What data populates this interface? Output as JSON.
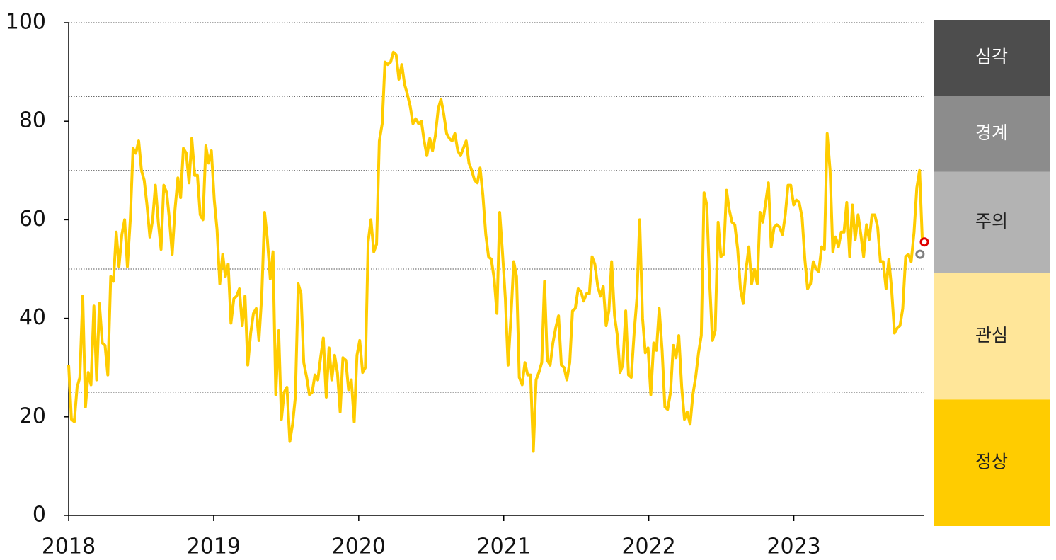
{
  "chart_data": {
    "type": "line",
    "xlim": [
      2018,
      2023.9
    ],
    "xticks": [
      2018,
      2019,
      2020,
      2021,
      2022,
      2023
    ],
    "ylim": [
      0,
      100
    ],
    "yticks": [
      0,
      20,
      40,
      60,
      80,
      100
    ],
    "x": [
      2018.0,
      2018.019,
      2018.039,
      2018.058,
      2018.077,
      2018.097,
      2018.116,
      2018.135,
      2018.154,
      2018.174,
      2018.193,
      2018.212,
      2018.232,
      2018.251,
      2018.27,
      2018.29,
      2018.309,
      2018.328,
      2018.347,
      2018.367,
      2018.386,
      2018.405,
      2018.425,
      2018.444,
      2018.463,
      2018.483,
      2018.502,
      2018.521,
      2018.54,
      2018.56,
      2018.579,
      2018.598,
      2018.618,
      2018.637,
      2018.656,
      2018.676,
      2018.695,
      2018.714,
      2018.733,
      2018.753,
      2018.772,
      2018.791,
      2018.811,
      2018.83,
      2018.849,
      2018.869,
      2018.888,
      2018.907,
      2018.926,
      2018.946,
      2018.965,
      2018.984,
      2019.004,
      2019.023,
      2019.042,
      2019.062,
      2019.081,
      2019.1,
      2019.119,
      2019.139,
      2019.158,
      2019.177,
      2019.197,
      2019.216,
      2019.235,
      2019.255,
      2019.274,
      2019.293,
      2019.312,
      2019.332,
      2019.351,
      2019.37,
      2019.39,
      2019.409,
      2019.428,
      2019.448,
      2019.467,
      2019.486,
      2019.505,
      2019.525,
      2019.544,
      2019.563,
      2019.583,
      2019.602,
      2019.621,
      2019.641,
      2019.66,
      2019.679,
      2019.698,
      2019.718,
      2019.737,
      2019.756,
      2019.776,
      2019.795,
      2019.814,
      2019.834,
      2019.853,
      2019.872,
      2019.891,
      2019.911,
      2019.93,
      2019.949,
      2019.969,
      2019.988,
      2020.007,
      2020.027,
      2020.046,
      2020.065,
      2020.084,
      2020.104,
      2020.123,
      2020.142,
      2020.162,
      2020.181,
      2020.2,
      2020.22,
      2020.239,
      2020.258,
      2020.277,
      2020.297,
      2020.316,
      2020.335,
      2020.355,
      2020.374,
      2020.393,
      2020.413,
      2020.432,
      2020.451,
      2020.47,
      2020.49,
      2020.509,
      2020.528,
      2020.548,
      2020.567,
      2020.586,
      2020.606,
      2020.625,
      2020.644,
      2020.663,
      2020.683,
      2020.702,
      2020.721,
      2020.741,
      2020.76,
      2020.779,
      2020.799,
      2020.818,
      2020.837,
      2020.856,
      2020.876,
      2020.895,
      2020.914,
      2020.934,
      2020.953,
      2020.972,
      2020.992,
      2021.011,
      2021.03,
      2021.049,
      2021.069,
      2021.088,
      2021.107,
      2021.127,
      2021.146,
      2021.165,
      2021.185,
      2021.204,
      2021.223,
      2021.242,
      2021.262,
      2021.281,
      2021.3,
      2021.32,
      2021.339,
      2021.358,
      2021.378,
      2021.397,
      2021.416,
      2021.435,
      2021.455,
      2021.474,
      2021.493,
      2021.513,
      2021.532,
      2021.551,
      2021.571,
      2021.59,
      2021.609,
      2021.628,
      2021.648,
      2021.667,
      2021.686,
      2021.706,
      2021.725,
      2021.744,
      2021.764,
      2021.783,
      2021.802,
      2021.821,
      2021.841,
      2021.86,
      2021.879,
      2021.899,
      2021.918,
      2021.937,
      2021.957,
      2021.976,
      2021.995,
      2022.014,
      2022.034,
      2022.053,
      2022.072,
      2022.092,
      2022.111,
      2022.13,
      2022.15,
      2022.169,
      2022.188,
      2022.207,
      2022.227,
      2022.246,
      2022.265,
      2022.285,
      2022.304,
      2022.323,
      2022.343,
      2022.362,
      2022.381,
      2022.4,
      2022.42,
      2022.439,
      2022.458,
      2022.478,
      2022.497,
      2022.516,
      2022.536,
      2022.555,
      2022.574,
      2022.593,
      2022.613,
      2022.632,
      2022.651,
      2022.671,
      2022.69,
      2022.709,
      2022.729,
      2022.748,
      2022.767,
      2022.786,
      2022.806,
      2022.825,
      2022.844,
      2022.864,
      2022.883,
      2022.902,
      2022.922,
      2022.941,
      2022.96,
      2022.979,
      2022.999,
      2023.018,
      2023.037,
      2023.057,
      2023.076,
      2023.095,
      2023.115,
      2023.134,
      2023.153,
      2023.172,
      2023.192,
      2023.211,
      2023.23,
      2023.25,
      2023.269,
      2023.288,
      2023.308,
      2023.327,
      2023.346,
      2023.365,
      2023.385,
      2023.404,
      2023.423,
      2023.443,
      2023.462,
      2023.481,
      2023.501,
      2023.52,
      2023.539,
      2023.558,
      2023.578,
      2023.597,
      2023.616,
      2023.636,
      2023.655,
      2023.674,
      2023.694,
      2023.713,
      2023.732,
      2023.751,
      2023.771,
      2023.79,
      2023.809,
      2023.829,
      2023.848,
      2023.867,
      2023.887
    ],
    "series": [
      {
        "color": "#FFCC00",
        "values": [
          30.5,
          19.5,
          19,
          26,
          28,
          44.5,
          22,
          29,
          26.5,
          42.5,
          27.5,
          43,
          35,
          34.5,
          28.5,
          48.5,
          47.5,
          57.5,
          50.5,
          57,
          60,
          50.5,
          60,
          74.5,
          73.5,
          76,
          70,
          68,
          63,
          56.5,
          60,
          67,
          59.5,
          54,
          67,
          65.5,
          60,
          53,
          62,
          68.5,
          64.5,
          74.5,
          73.5,
          67.5,
          76.5,
          69,
          69,
          61,
          60,
          75,
          71.5,
          74,
          64,
          58,
          47,
          53,
          48.5,
          51,
          39,
          44,
          44.5,
          46,
          38.5,
          44.5,
          30.5,
          37,
          41,
          42,
          35.5,
          45,
          61.5,
          56,
          48,
          53.5,
          24.5,
          37.5,
          19.5,
          25,
          26,
          15,
          18.5,
          24,
          47,
          45,
          31,
          28,
          24.5,
          25,
          28.5,
          27.5,
          32,
          36,
          24,
          34,
          27.5,
          32.5,
          29,
          21,
          32,
          31.5,
          25.5,
          27.5,
          19,
          32.5,
          35.5,
          29,
          30,
          55.5,
          60,
          53.5,
          55,
          76,
          79.5,
          92,
          91.5,
          92,
          94,
          93.5,
          88.5,
          91.5,
          87.5,
          85.5,
          83,
          79.5,
          80.5,
          79.5,
          80,
          76,
          73,
          76.5,
          74,
          77,
          82.5,
          84.5,
          81.5,
          77.5,
          76.5,
          76,
          77.5,
          74,
          73,
          74.5,
          76,
          71.5,
          70,
          68,
          67.5,
          70.5,
          65,
          57,
          52.5,
          52,
          48,
          41,
          61.5,
          53,
          44,
          30.5,
          40,
          51.5,
          48.5,
          28,
          26.5,
          31,
          28.5,
          28.5,
          13,
          27.5,
          29,
          31,
          47.5,
          31.5,
          30.5,
          35,
          38,
          40.5,
          30.5,
          30,
          27.5,
          31,
          41.5,
          42,
          46,
          45.5,
          43.5,
          45,
          45,
          52.5,
          51,
          46.5,
          44.5,
          46.5,
          38.5,
          41.5,
          51.5,
          40.5,
          36.5,
          29,
          30.5,
          41.5,
          28.5,
          28,
          37,
          44,
          60,
          40,
          33,
          34,
          24.5,
          35,
          33.5,
          42,
          33.5,
          22,
          21.5,
          25,
          34.5,
          32,
          36.5,
          26,
          19.5,
          21,
          18.5,
          24.5,
          28,
          33,
          36.5,
          65.5,
          63,
          47,
          35.5,
          37.5,
          59.5,
          52.5,
          53,
          66,
          62,
          59.5,
          59,
          54,
          46,
          43,
          50,
          54.5,
          47,
          50,
          47,
          61.5,
          59.5,
          63.5,
          67.5,
          54.5,
          58.5,
          59,
          58.5,
          57,
          61,
          67,
          67,
          63,
          64,
          63.5,
          60.5,
          52,
          46,
          47,
          51.5,
          50,
          49.5,
          54.5,
          54,
          77.5,
          70,
          53.5,
          56.5,
          54.5,
          57.5,
          57.5,
          63.5,
          52.5,
          63,
          56,
          61,
          57,
          52.5,
          59,
          56,
          61,
          61,
          58.5,
          51.5,
          51.5,
          46,
          52,
          46,
          37,
          38,
          38.5,
          42,
          52.5,
          53,
          51.5,
          57.5,
          66.5,
          70,
          55
        ]
      }
    ],
    "markers": [
      {
        "x": 2023.87,
        "value": 53,
        "color": "#7F7F7F"
      },
      {
        "x": 2023.9,
        "value": 55.5,
        "color": "#E00000"
      }
    ],
    "levels": [
      {
        "name": "정상",
        "from": 0,
        "to": 25,
        "color": "#FFCC00",
        "text_color": "#222222"
      },
      {
        "name": "관심",
        "from": 25,
        "to": 50,
        "color": "#FFE699",
        "text_color": "#222222"
      },
      {
        "name": "주의",
        "from": 50,
        "to": 70,
        "color": "#B3B3B3",
        "text_color": "#222222"
      },
      {
        "name": "경계",
        "from": 70,
        "to": 85,
        "color": "#8C8C8C",
        "text_color": "#FFFFFF"
      },
      {
        "name": "심각",
        "from": 85,
        "to": 100,
        "color": "#4D4D4D",
        "text_color": "#FFFFFF"
      }
    ]
  }
}
